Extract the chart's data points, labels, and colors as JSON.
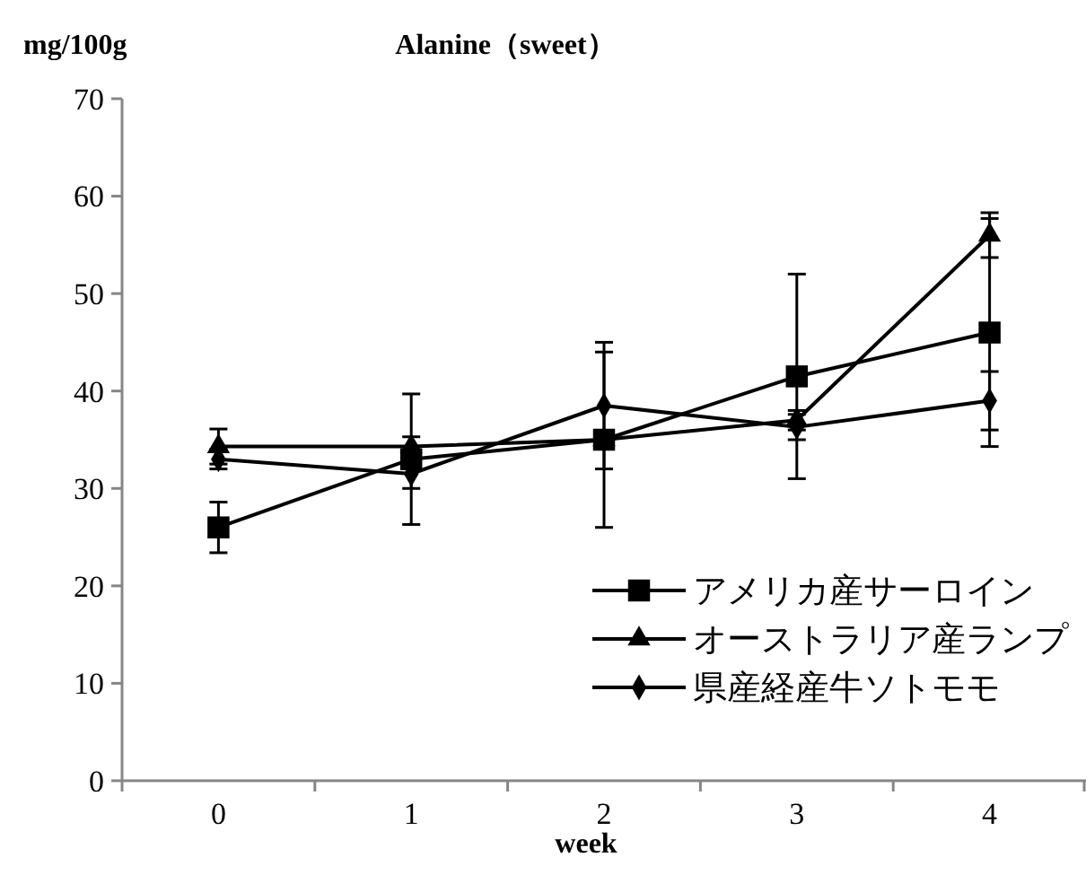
{
  "chart_data": {
    "type": "line",
    "title": "Alanine（sweet）",
    "ylabel": "mg/100g",
    "xlabel": "week",
    "categories": [
      "0",
      "1",
      "2",
      "3",
      "4"
    ],
    "ylim": [
      0,
      70
    ],
    "yticks": [
      0,
      10,
      20,
      30,
      40,
      50,
      60,
      70
    ],
    "grid": false,
    "legend": "bottom right",
    "line_style": "solid",
    "series": [
      {
        "name": "アメリカ産サーロイン",
        "color": "#000000",
        "marker": "square",
        "values": [
          26,
          33,
          35,
          41.5,
          46
        ],
        "errors": [
          2.6,
          6.7,
          9,
          10.5,
          11.7
        ]
      },
      {
        "name": "オーストラリア産ランプ",
        "color": "#000000",
        "marker": "triangle",
        "values": [
          34.3,
          34.3,
          35,
          37,
          56
        ],
        "errors": [
          1.8,
          1,
          0.5,
          1,
          2.3
        ]
      },
      {
        "name": "県産経産牛ソトモモ",
        "color": "#000000",
        "marker": "diamond",
        "values": [
          33,
          31.5,
          38.5,
          36.3,
          39
        ],
        "errors": [
          1,
          1.5,
          6.5,
          1.3,
          3
        ]
      }
    ]
  }
}
